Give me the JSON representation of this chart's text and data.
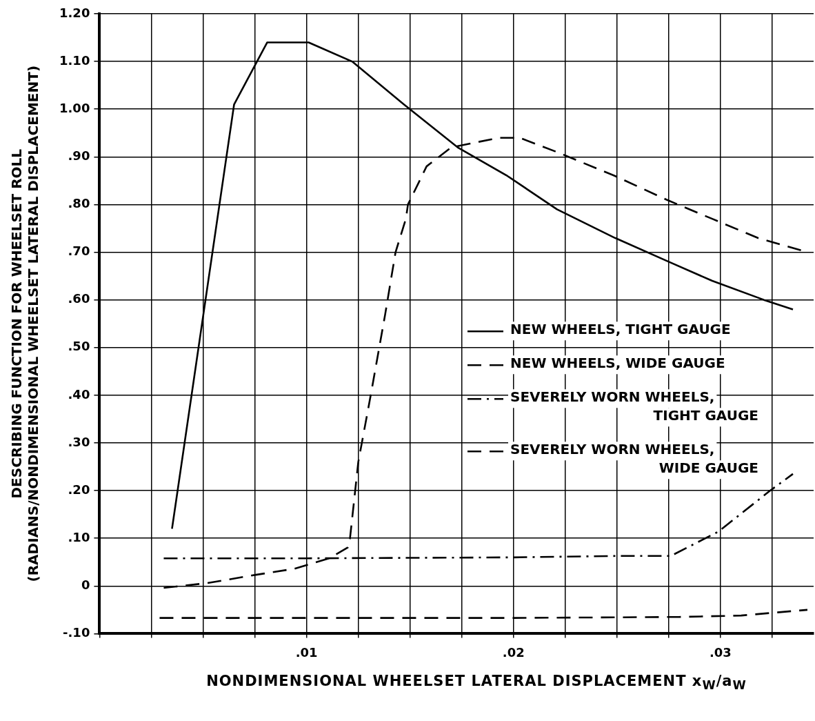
{
  "chart_data": {
    "type": "line",
    "xlabel": "NONDIMENSIONAL WHEELSET LATERAL DISPLACEMENT x$_{W}$/a$_{W}$",
    "ylabel": "DESCRIBING FUNCTION FOR WHEELSET ROLL\n(RADIANS/NONDIMENSIONAL WHEELSET LATERAL DISPLACEMENT)",
    "xlim": [
      0,
      0.0345
    ],
    "xticks": [
      {
        "value": 0,
        "label": null
      },
      {
        "value": 0.0025,
        "label": null
      },
      {
        "value": 0.005,
        "label": null
      },
      {
        "value": 0.0075,
        "label": null
      },
      {
        "value": 0.01,
        "label": ".01"
      },
      {
        "value": 0.0125,
        "label": null
      },
      {
        "value": 0.015,
        "label": null
      },
      {
        "value": 0.0175,
        "label": null
      },
      {
        "value": 0.02,
        "label": ".02"
      },
      {
        "value": 0.0225,
        "label": null
      },
      {
        "value": 0.025,
        "label": null
      },
      {
        "value": 0.0275,
        "label": null
      },
      {
        "value": 0.03,
        "label": ".03"
      },
      {
        "value": 0.0325,
        "label": null
      }
    ],
    "ylim": [
      -0.1,
      1.2
    ],
    "yticks": [
      {
        "value": -0.1,
        "label": "-.10"
      },
      0,
      {
        "value": 0.1,
        "label": ".10"
      },
      {
        "value": 0.2,
        "label": ".20"
      },
      {
        "value": 0.3,
        "label": ".30"
      },
      {
        "value": 0.4,
        "label": ".40"
      },
      {
        "value": 0.5,
        "label": ".50"
      },
      {
        "value": 0.6,
        "label": ".60"
      },
      {
        "value": 0.7,
        "label": ".70"
      },
      {
        "value": 0.8,
        "label": ".80"
      },
      {
        "value": 0.9,
        "label": ".90"
      },
      {
        "value": 1.0,
        "label": "1.00"
      },
      {
        "value": 1.1,
        "label": "1.10"
      },
      {
        "value": 1.2,
        "label": "1.20"
      }
    ],
    "grid": true,
    "legend": "right",
    "marker": "none",
    "series": [
      {
        "name": "NEW WHEELS, TIGHT GAUGE",
        "color": "#000000",
        "line_style": "solid",
        "x": [
          0.0035,
          0.0065,
          0.0081,
          0.0101,
          0.0122,
          0.0147,
          0.0173,
          0.0197,
          0.0221,
          0.0249,
          0.0275,
          0.0296,
          0.0321,
          0.0335
        ],
        "values": [
          0.12,
          1.01,
          1.14,
          1.14,
          1.1,
          1.01,
          0.92,
          0.86,
          0.79,
          0.73,
          0.68,
          0.64,
          0.6,
          0.58
        ]
      },
      {
        "name": "NEW WHEELS, WIDE GAUGE",
        "color": "#000000",
        "line_style": "dashed",
        "x": [
          0.0031,
          0.0052,
          0.0075,
          0.0094,
          0.0111,
          0.012,
          0.0121,
          0.0125,
          0.0131,
          0.0138,
          0.0143,
          0.0148,
          0.0149,
          0.0158,
          0.017,
          0.0193,
          0.0203,
          0.0221,
          0.0249,
          0.0274,
          0.0296,
          0.0318,
          0.0342
        ],
        "values": [
          -0.004,
          0.006,
          0.023,
          0.036,
          0.058,
          0.081,
          0.1,
          0.26,
          0.4,
          0.57,
          0.7,
          0.77,
          0.8,
          0.88,
          0.92,
          0.94,
          0.94,
          0.91,
          0.86,
          0.81,
          0.77,
          0.73,
          0.7
        ]
      },
      {
        "name": "SEVERELY WORN WHEELS, TIGHT GAUGE",
        "color": "#000000",
        "line_style": "dashdot",
        "x": [
          0.0031,
          0.01,
          0.02,
          0.025,
          0.0276,
          0.0299,
          0.0324,
          0.0335
        ],
        "values": [
          0.058,
          0.058,
          0.06,
          0.063,
          0.063,
          0.114,
          0.2,
          0.235
        ]
      },
      {
        "name": "SEVERELY WORN WHEELS, WIDE GAUGE",
        "color": "#000000",
        "line_style": "dashed",
        "x": [
          0.0029,
          0.02,
          0.028,
          0.031,
          0.0342
        ],
        "values": [
          -0.067,
          -0.067,
          -0.065,
          -0.062,
          -0.05
        ]
      }
    ]
  }
}
